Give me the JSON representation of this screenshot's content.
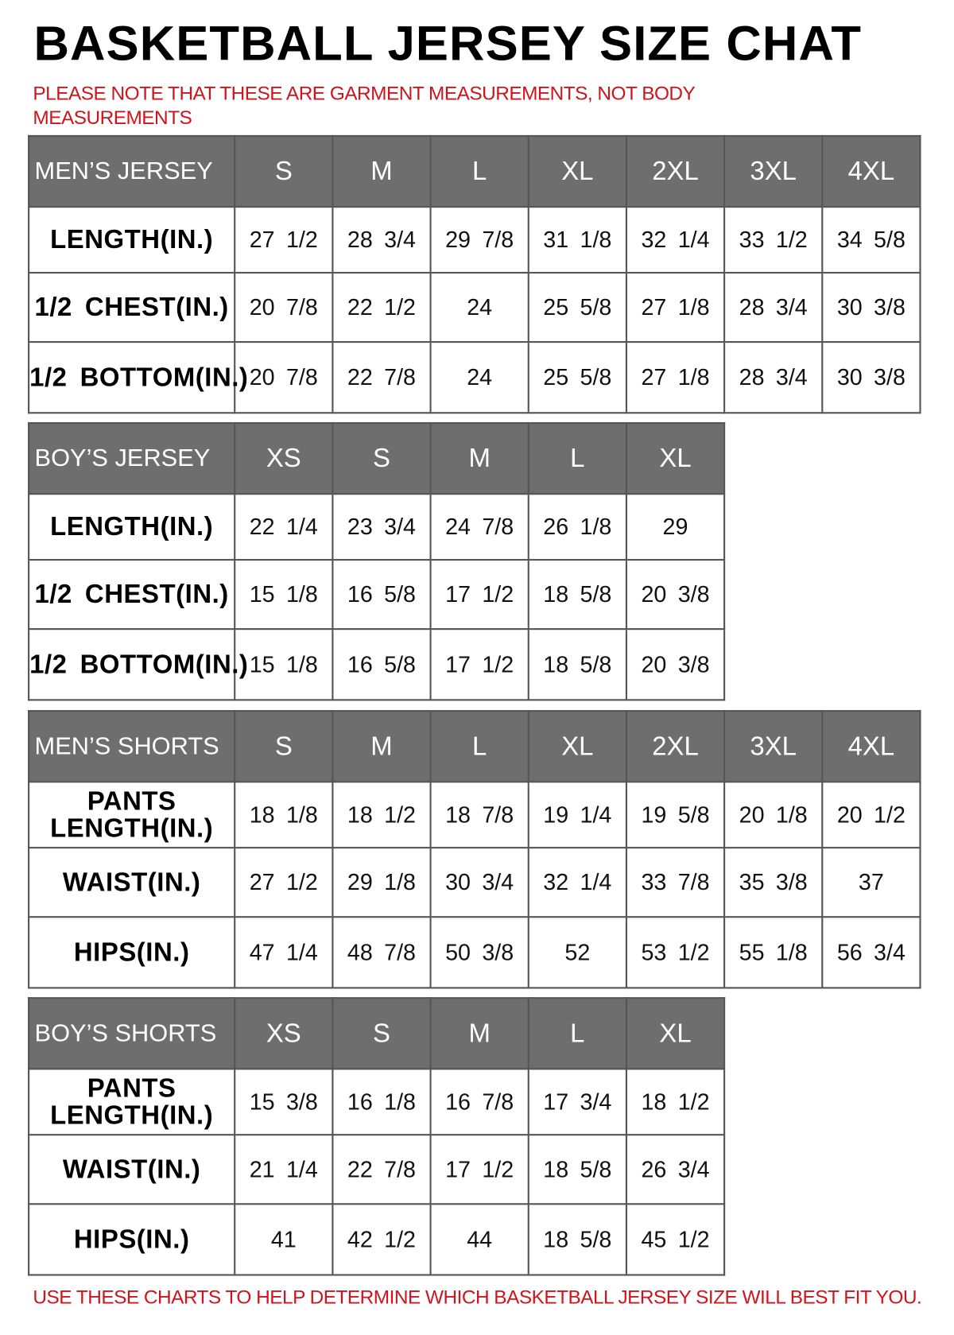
{
  "title": "BASKETBALL JERSEY SIZE CHAT",
  "note": "PLEASE NOTE THAT THESE ARE GARMENT MEASUREMENTS, NOT BODY MEASUREMENTS",
  "footer": "USE THESE CHARTS TO HELP DETERMINE WHICH BASKETBALL JERSEY SIZE WILL BEST FIT YOU.",
  "colors": {
    "header_bg": "#6e6e6e",
    "note_red": "#d0141c"
  },
  "tables": [
    {
      "heading": "MEN’S JERSEY",
      "sizes": [
        "S",
        "M",
        "L",
        "XL",
        "2XL",
        "3XL",
        "4XL"
      ],
      "rows": [
        {
          "label": "LENGTH(IN.)",
          "values": [
            "27 1/2",
            "28 3/4",
            "29 7/8",
            "31 1/8",
            "32 1/4",
            "33 1/2",
            "34 5/8"
          ]
        },
        {
          "label": "1/2 CHEST(IN.)",
          "values": [
            "20 7/8",
            "22 1/2",
            "24",
            "25 5/8",
            "27 1/8",
            "28 3/4",
            "30 3/8"
          ]
        },
        {
          "label": "1/2 BOTTOM(IN.)",
          "values": [
            "20 7/8",
            "22 7/8",
            "24",
            "25 5/8",
            "27 1/8",
            "28 3/4",
            "30 3/8"
          ]
        }
      ]
    },
    {
      "heading": "BOY’S JERSEY",
      "sizes": [
        "XS",
        "S",
        "M",
        "L",
        "XL"
      ],
      "rows": [
        {
          "label": "LENGTH(IN.)",
          "values": [
            "22 1/4",
            "23 3/4",
            "24 7/8",
            "26 1/8",
            "29"
          ]
        },
        {
          "label": "1/2 CHEST(IN.)",
          "values": [
            "15 1/8",
            "16 5/8",
            "17 1/2",
            "18 5/8",
            "20 3/8"
          ]
        },
        {
          "label": "1/2 BOTTOM(IN.)",
          "values": [
            "15 1/8",
            "16 5/8",
            "17 1/2",
            "18 5/8",
            "20 3/8"
          ]
        }
      ]
    },
    {
      "heading": "MEN’S SHORTS",
      "sizes": [
        "S",
        "M",
        "L",
        "XL",
        "2XL",
        "3XL",
        "4XL"
      ],
      "rows": [
        {
          "label": "PANTS LENGTH(IN.)",
          "values": [
            "18 1/8",
            "18 1/2",
            "18 7/8",
            "19 1/4",
            "19 5/8",
            "20 1/8",
            "20 1/2"
          ]
        },
        {
          "label": "WAIST(IN.)",
          "values": [
            "27 1/2",
            "29 1/8",
            "30 3/4",
            "32 1/4",
            "33 7/8",
            "35 3/8",
            "37"
          ]
        },
        {
          "label": "HIPS(IN.)",
          "values": [
            "47 1/4",
            "48 7/8",
            "50 3/8",
            "52",
            "53 1/2",
            "55 1/8",
            "56 3/4"
          ]
        }
      ]
    },
    {
      "heading": "BOY’S SHORTS",
      "sizes": [
        "XS",
        "S",
        "M",
        "L",
        "XL"
      ],
      "rows": [
        {
          "label": "PANTS LENGTH(IN.)",
          "values": [
            "15 3/8",
            "16 1/8",
            "16 7/8",
            "17 3/4",
            "18 1/2"
          ]
        },
        {
          "label": "WAIST(IN.)",
          "values": [
            "21 1/4",
            "22 7/8",
            "17 1/2",
            "18 5/8",
            "26 3/4"
          ]
        },
        {
          "label": "HIPS(IN.)",
          "values": [
            "41",
            "42 1/2",
            "44",
            "18 5/8",
            "45 1/2"
          ]
        }
      ]
    }
  ]
}
